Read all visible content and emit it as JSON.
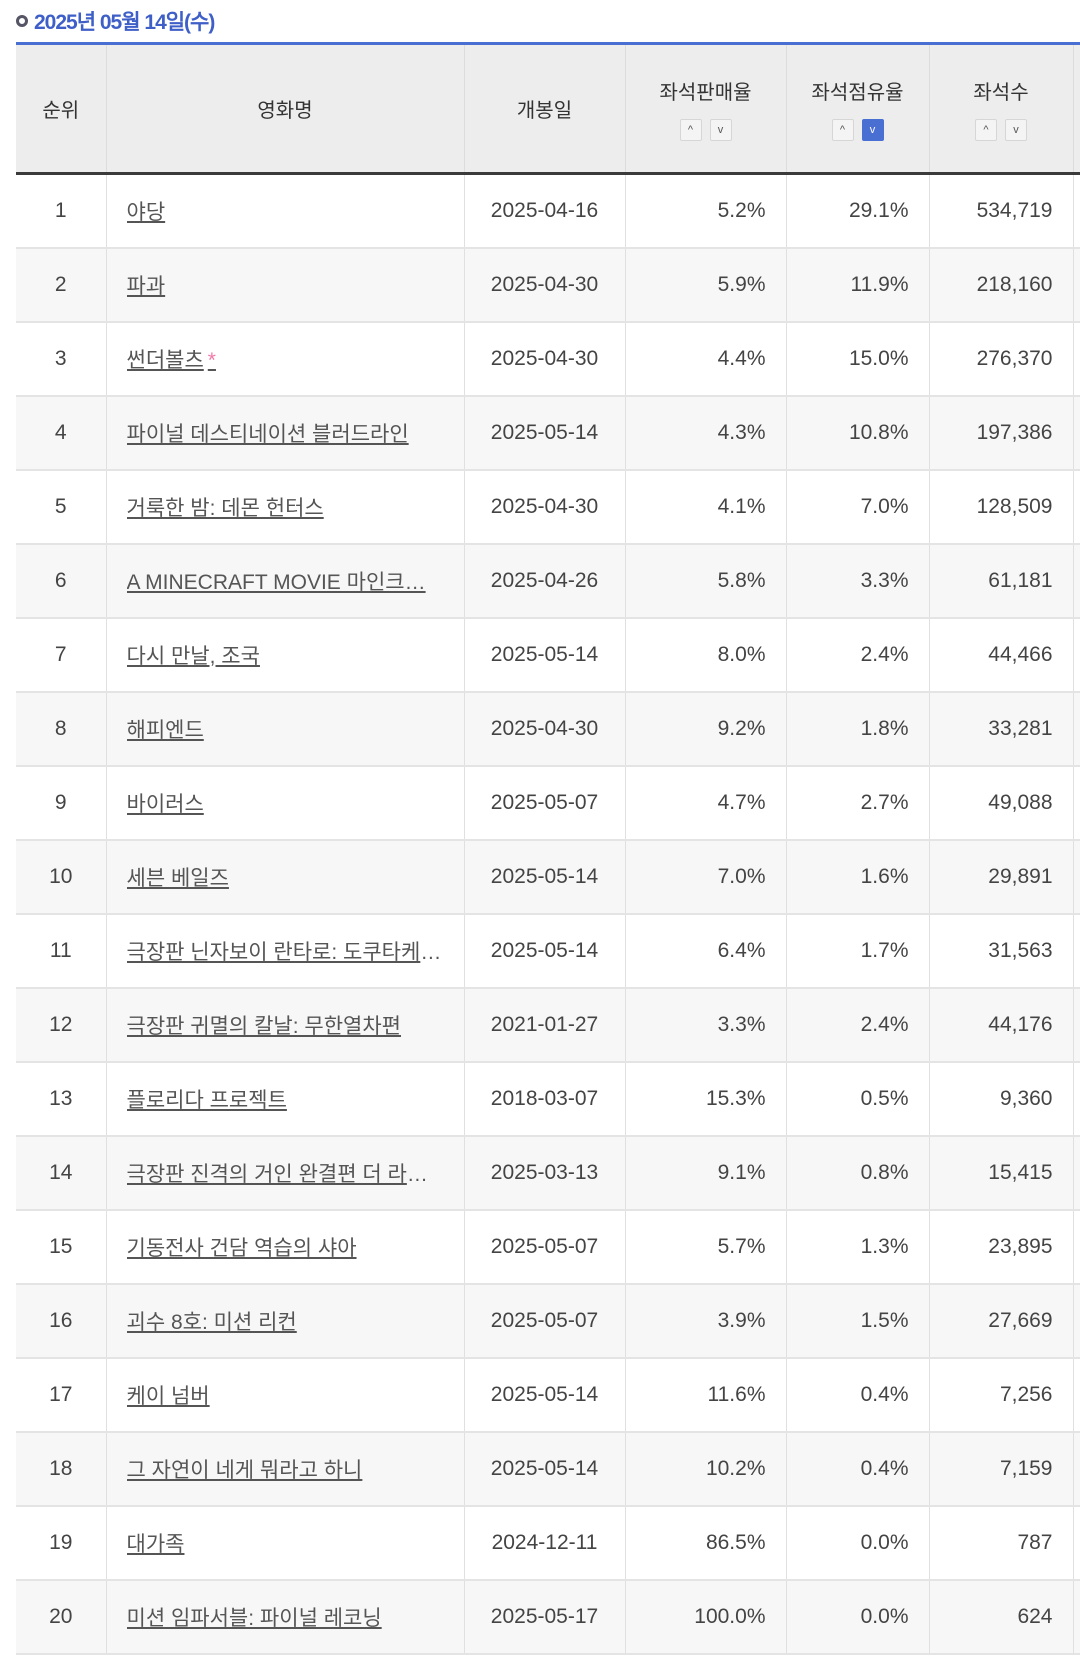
{
  "title": "2025년 05월 14일(수)",
  "colors": {
    "accent": "#4a6fd3",
    "star": "#f07aa8"
  },
  "headers": {
    "rank": "순위",
    "movie": "영화명",
    "release": "개봉일",
    "sales_rate": "좌석판매율",
    "share": "좌석점유율",
    "seats": "좌석수"
  },
  "sort": {
    "up": "^",
    "down": "v",
    "active": "좌석점유율-desc"
  },
  "rows": [
    {
      "rank": "1",
      "title": "야당",
      "star": "",
      "date": "2025-04-16",
      "sales": "5.2%",
      "share": "29.1%",
      "seats": "534,719"
    },
    {
      "rank": "2",
      "title": "파과",
      "star": "",
      "date": "2025-04-30",
      "sales": "5.9%",
      "share": "11.9%",
      "seats": "218,160"
    },
    {
      "rank": "3",
      "title": "썬더볼츠",
      "star": "*",
      "date": "2025-04-30",
      "sales": "4.4%",
      "share": "15.0%",
      "seats": "276,370"
    },
    {
      "rank": "4",
      "title": "파이널 데스티네이션 블러드라인",
      "star": "",
      "date": "2025-05-14",
      "sales": "4.3%",
      "share": "10.8%",
      "seats": "197,386"
    },
    {
      "rank": "5",
      "title": "거룩한 밤: 데몬 헌터스",
      "star": "",
      "date": "2025-04-30",
      "sales": "4.1%",
      "share": "7.0%",
      "seats": "128,509"
    },
    {
      "rank": "6",
      "title": "A MINECRAFT MOVIE 마인크…",
      "star": "",
      "date": "2025-04-26",
      "sales": "5.8%",
      "share": "3.3%",
      "seats": "61,181"
    },
    {
      "rank": "7",
      "title": "다시 만날, 조국",
      "star": "",
      "date": "2025-05-14",
      "sales": "8.0%",
      "share": "2.4%",
      "seats": "44,466"
    },
    {
      "rank": "8",
      "title": "해피엔드",
      "star": "",
      "date": "2025-04-30",
      "sales": "9.2%",
      "share": "1.8%",
      "seats": "33,281"
    },
    {
      "rank": "9",
      "title": "바이러스",
      "star": "",
      "date": "2025-05-07",
      "sales": "4.7%",
      "share": "2.7%",
      "seats": "49,088"
    },
    {
      "rank": "10",
      "title": "세븐 베일즈",
      "star": "",
      "date": "2025-05-14",
      "sales": "7.0%",
      "share": "1.6%",
      "seats": "29,891"
    },
    {
      "rank": "11",
      "title": "극장판 닌자보이 란타로: 도쿠타케…",
      "star": "",
      "date": "2025-05-14",
      "sales": "6.4%",
      "share": "1.7%",
      "seats": "31,563"
    },
    {
      "rank": "12",
      "title": "극장판 귀멸의 칼날: 무한열차편",
      "star": "",
      "date": "2021-01-27",
      "sales": "3.3%",
      "share": "2.4%",
      "seats": "44,176"
    },
    {
      "rank": "13",
      "title": "플로리다 프로젝트",
      "star": "",
      "date": "2018-03-07",
      "sales": "15.3%",
      "share": "0.5%",
      "seats": "9,360"
    },
    {
      "rank": "14",
      "title": "극장판 진격의 거인 완결편 더 라스…",
      "star": "",
      "date": "2025-03-13",
      "sales": "9.1%",
      "share": "0.8%",
      "seats": "15,415"
    },
    {
      "rank": "15",
      "title": "기동전사 건담 역습의 샤아",
      "star": "",
      "date": "2025-05-07",
      "sales": "5.7%",
      "share": "1.3%",
      "seats": "23,895"
    },
    {
      "rank": "16",
      "title": "괴수 8호: 미션 리컨",
      "star": "",
      "date": "2025-05-07",
      "sales": "3.9%",
      "share": "1.5%",
      "seats": "27,669"
    },
    {
      "rank": "17",
      "title": "케이 넘버",
      "star": "",
      "date": "2025-05-14",
      "sales": "11.6%",
      "share": "0.4%",
      "seats": "7,256"
    },
    {
      "rank": "18",
      "title": "그 자연이 네게 뭐라고 하니",
      "star": "",
      "date": "2025-05-14",
      "sales": "10.2%",
      "share": "0.4%",
      "seats": "7,159"
    },
    {
      "rank": "19",
      "title": "대가족",
      "star": "",
      "date": "2024-12-11",
      "sales": "86.5%",
      "share": "0.0%",
      "seats": "787"
    },
    {
      "rank": "20",
      "title": "미션 임파서블: 파이널 레코닝",
      "star": "",
      "date": "2025-05-17",
      "sales": "100.0%",
      "share": "0.0%",
      "seats": "624"
    }
  ]
}
